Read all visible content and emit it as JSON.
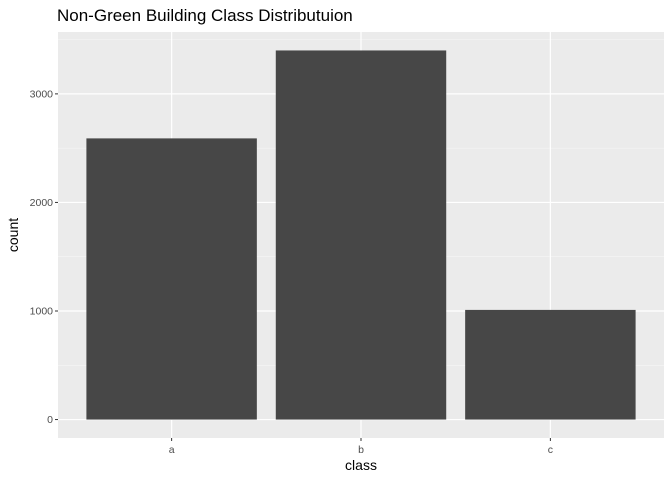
{
  "chart_data": {
    "type": "bar",
    "title": "Non-Green Building Class Distributuion",
    "xlabel": "class",
    "ylabel": "count",
    "categories": [
      "a",
      "b",
      "c"
    ],
    "values": [
      2590,
      3400,
      1010
    ],
    "ylim": [
      -170,
      3570
    ],
    "yticks": [
      0,
      1000,
      2000,
      3000
    ],
    "grid": true,
    "legend": "none",
    "colors": {
      "bar": "#474747",
      "panel": "#ebebeb",
      "grid_major": "#ffffff",
      "grid_minor": "#f5f5f5",
      "axis_text": "#4d4d4d",
      "title_text": "#000000"
    }
  }
}
